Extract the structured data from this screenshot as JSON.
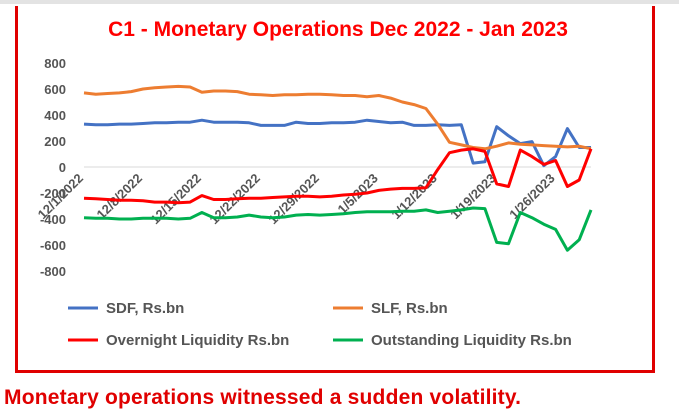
{
  "title": "C1 - Monetary Operations  Dec 2022 - Jan 2023",
  "caption": "Monetary operations witnessed a sudden volatility.",
  "chart_data": {
    "type": "line",
    "title": "C1 - Monetary Operations  Dec 2022 - Jan 2023",
    "ylim": [
      -800,
      800
    ],
    "yticks": [
      800,
      600,
      400,
      200,
      0,
      -200,
      -400,
      -600,
      -800
    ],
    "grid": false,
    "legend_position": "bottom",
    "x_tick_labels": [
      "12/1/2022",
      "12/8/2022",
      "12/15/2022",
      "12/22/2022",
      "12/29/2022",
      "1/5/2023",
      "1/12/2023",
      "1/19/2023",
      "1/26/2023"
    ],
    "x": [
      "12/1/2022",
      "12/2/2022",
      "12/5/2022",
      "12/6/2022",
      "12/7/2022",
      "12/8/2022",
      "12/9/2022",
      "12/12/2022",
      "12/13/2022",
      "12/14/2022",
      "12/15/2022",
      "12/16/2022",
      "12/19/2022",
      "12/20/2022",
      "12/21/2022",
      "12/22/2022",
      "12/23/2022",
      "12/26/2022",
      "12/27/2022",
      "12/28/2022",
      "12/29/2022",
      "12/30/2022",
      "1/2/2023",
      "1/3/2023",
      "1/4/2023",
      "1/5/2023",
      "1/6/2023",
      "1/9/2023",
      "1/10/2023",
      "1/11/2023",
      "1/12/2023",
      "1/13/2023",
      "1/16/2023",
      "1/17/2023",
      "1/18/2023",
      "1/19/2023",
      "1/20/2023",
      "1/23/2023",
      "1/24/2023",
      "1/25/2023",
      "1/26/2023",
      "1/27/2023",
      "1/30/2023",
      "1/31/2023"
    ],
    "series": [
      {
        "name": "SDF, Rs.bn",
        "color": "#4472c4",
        "values": [
          330,
          325,
          325,
          330,
          330,
          335,
          340,
          340,
          345,
          345,
          360,
          345,
          345,
          345,
          340,
          320,
          320,
          320,
          345,
          335,
          335,
          340,
          340,
          345,
          360,
          350,
          340,
          345,
          320,
          320,
          325,
          320,
          325,
          30,
          40,
          310,
          240,
          180,
          195,
          10,
          80,
          295,
          150,
          150
        ]
      },
      {
        "name": "SLF, Rs.bn",
        "color": "#ed7d31",
        "values": [
          570,
          560,
          565,
          570,
          580,
          600,
          610,
          615,
          620,
          615,
          575,
          585,
          585,
          580,
          560,
          555,
          550,
          555,
          555,
          560,
          560,
          555,
          550,
          550,
          540,
          550,
          530,
          500,
          480,
          450,
          330,
          190,
          170,
          150,
          140,
          160,
          185,
          175,
          170,
          165,
          160,
          155,
          160,
          140
        ]
      },
      {
        "name": "Overnight Liquidity Rs.bn",
        "color": "#ff0000",
        "values": [
          -240,
          -245,
          -250,
          -255,
          -255,
          -260,
          -270,
          -270,
          -275,
          -270,
          -220,
          -250,
          -250,
          -245,
          -240,
          -240,
          -235,
          -230,
          -225,
          -225,
          -230,
          -225,
          -215,
          -210,
          -200,
          -180,
          -170,
          -165,
          -165,
          -160,
          -20,
          110,
          130,
          140,
          120,
          -130,
          -150,
          130,
          80,
          20,
          50,
          -150,
          -100,
          140
        ]
      },
      {
        "name": "Outstanding Liquidity Rs.bn",
        "color": "#00b050",
        "values": [
          -390,
          -395,
          -395,
          -400,
          -400,
          -395,
          -395,
          -395,
          -400,
          -395,
          -350,
          -390,
          -390,
          -385,
          -370,
          -385,
          -390,
          -385,
          -370,
          -365,
          -370,
          -365,
          -360,
          -350,
          -345,
          -345,
          -345,
          -340,
          -340,
          -330,
          -350,
          -340,
          -330,
          -315,
          -320,
          -580,
          -590,
          -350,
          -390,
          -440,
          -480,
          -640,
          -560,
          -330
        ]
      }
    ]
  }
}
